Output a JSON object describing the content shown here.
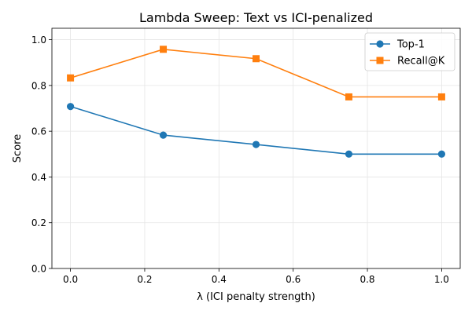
{
  "chart_data": {
    "type": "line",
    "title": "Lambda Sweep: Text vs ICI-penalized",
    "xlabel": "λ (ICI penalty strength)",
    "ylabel": "Score",
    "xlim": [
      -0.05,
      1.05
    ],
    "ylim": [
      0.0,
      1.05
    ],
    "x_ticks": [
      0.0,
      0.2,
      0.4,
      0.6,
      0.8,
      1.0
    ],
    "x_tick_labels": [
      "0.0",
      "0.2",
      "0.4",
      "0.6",
      "0.8",
      "1.0"
    ],
    "y_ticks": [
      0.0,
      0.2,
      0.4,
      0.6,
      0.8,
      1.0
    ],
    "y_tick_labels": [
      "0.0",
      "0.2",
      "0.4",
      "0.6",
      "0.8",
      "1.0"
    ],
    "grid": true,
    "legend_position": "top-right",
    "x": [
      0.0,
      0.25,
      0.5,
      0.75,
      1.0
    ],
    "series": [
      {
        "name": "Top-1",
        "values": [
          0.708,
          0.583,
          0.542,
          0.5,
          0.5
        ],
        "color": "#1f77b4",
        "marker": "circle"
      },
      {
        "name": "Recall@K",
        "values": [
          0.833,
          0.958,
          0.917,
          0.75,
          0.75
        ],
        "color": "#ff7f0e",
        "marker": "square"
      }
    ]
  }
}
